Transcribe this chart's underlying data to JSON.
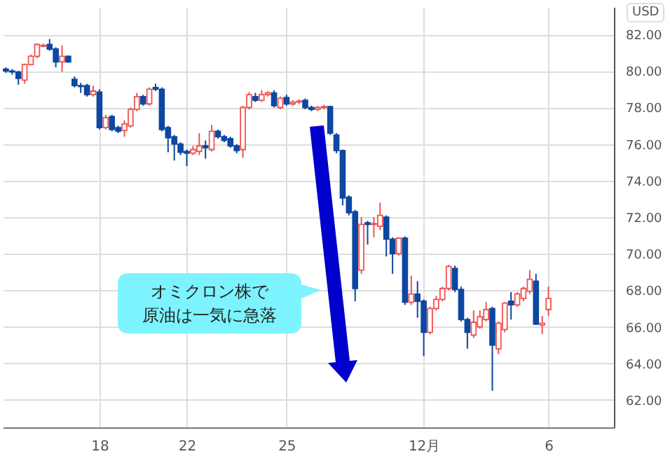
{
  "chart_data": {
    "type": "candlestick",
    "ylabel": "USD",
    "annotations": [
      "オミクロン株で",
      "原油は一気に急落"
    ],
    "categories": [
      null,
      null,
      null,
      null,
      null,
      null,
      null,
      null,
      null,
      null,
      null,
      null,
      null,
      null,
      null,
      "18",
      null,
      null,
      null,
      null,
      null,
      null,
      null,
      null,
      null,
      null,
      null,
      null,
      null,
      "22",
      null,
      null,
      null,
      null,
      null,
      null,
      null,
      null,
      null,
      null,
      null,
      null,
      null,
      null,
      null,
      "25",
      null,
      null,
      null,
      null,
      null,
      null,
      null,
      null,
      null,
      null,
      null,
      null,
      null,
      null,
      null,
      null,
      null,
      null,
      null,
      null,
      null,
      "12月",
      null,
      null,
      null,
      null,
      null,
      null,
      null,
      null,
      null,
      null,
      null,
      null,
      null,
      null,
      null,
      null,
      null,
      null,
      null,
      "6",
      null,
      null,
      null,
      null,
      null,
      null,
      null,
      null,
      null,
      null
    ],
    "ohlc": [
      [
        80.1,
        80.2,
        79.9,
        80.0
      ],
      [
        80.0,
        80.1,
        79.8,
        79.95
      ],
      [
        79.95,
        80.0,
        79.25,
        79.6
      ],
      [
        79.5,
        80.4,
        79.3,
        80.35
      ],
      [
        80.35,
        80.9,
        80.3,
        80.8
      ],
      [
        80.8,
        81.5,
        80.7,
        81.45
      ],
      [
        81.35,
        81.5,
        81.3,
        81.4
      ],
      [
        81.45,
        81.75,
        81.1,
        81.2
      ],
      [
        81.2,
        81.3,
        80.2,
        80.5
      ],
      [
        80.5,
        81.4,
        79.95,
        80.8
      ],
      [
        80.8,
        80.85,
        80.45,
        80.5
      ],
      [
        79.55,
        79.7,
        79.1,
        79.2
      ],
      [
        79.2,
        79.35,
        78.8,
        79.15
      ],
      [
        79.2,
        79.3,
        78.6,
        78.7
      ],
      [
        78.7,
        79.2,
        78.6,
        78.9
      ],
      [
        78.85,
        79.0,
        76.8,
        76.9
      ],
      [
        76.9,
        77.6,
        76.8,
        77.45
      ],
      [
        77.5,
        77.6,
        76.7,
        76.8
      ],
      [
        76.9,
        77.0,
        76.6,
        76.7
      ],
      [
        76.75,
        77.3,
        76.4,
        77.1
      ],
      [
        77.0,
        78.0,
        76.9,
        77.9
      ],
      [
        77.9,
        78.8,
        77.8,
        78.6
      ],
      [
        78.6,
        78.7,
        78.1,
        78.2
      ],
      [
        78.2,
        79.1,
        78.1,
        79.0
      ],
      [
        79.1,
        79.3,
        78.9,
        79.0
      ],
      [
        79.0,
        79.1,
        76.7,
        76.8
      ],
      [
        76.9,
        77.0,
        75.55,
        76.35
      ],
      [
        76.4,
        76.5,
        75.1,
        76.0
      ],
      [
        76.0,
        76.1,
        75.4,
        75.55
      ],
      [
        75.6,
        75.7,
        74.8,
        75.5
      ],
      [
        75.5,
        75.9,
        75.4,
        75.7
      ],
      [
        75.6,
        76.6,
        75.4,
        75.9
      ],
      [
        75.9,
        76.2,
        75.2,
        75.8
      ],
      [
        75.7,
        77.05,
        75.6,
        76.7
      ],
      [
        76.7,
        76.8,
        76.3,
        76.4
      ],
      [
        76.4,
        76.5,
        76.1,
        76.2
      ],
      [
        76.3,
        76.4,
        75.8,
        75.9
      ],
      [
        75.9,
        76.0,
        75.5,
        75.65
      ],
      [
        75.7,
        78.1,
        75.25,
        78.0
      ],
      [
        78.0,
        78.85,
        77.9,
        78.7
      ],
      [
        78.6,
        78.8,
        78.3,
        78.4
      ],
      [
        78.4,
        78.95,
        78.3,
        78.7
      ],
      [
        78.7,
        78.9,
        78.6,
        78.8
      ],
      [
        78.8,
        78.95,
        78.0,
        78.1
      ],
      [
        78.0,
        78.6,
        77.9,
        78.5
      ],
      [
        78.55,
        78.7,
        78.1,
        78.2
      ],
      [
        78.2,
        78.4,
        78.1,
        78.3
      ],
      [
        78.3,
        78.45,
        78.2,
        78.35
      ],
      [
        78.4,
        78.5,
        77.9,
        78.0
      ],
      [
        78.0,
        78.1,
        77.8,
        77.9
      ],
      [
        77.9,
        78.1,
        77.8,
        78.0
      ],
      [
        78.0,
        78.15,
        77.9,
        78.05
      ],
      [
        78.05,
        78.1,
        76.5,
        76.6
      ],
      [
        76.5,
        76.6,
        75.5,
        75.65
      ],
      [
        75.65,
        75.7,
        72.65,
        73.05
      ],
      [
        73.1,
        73.2,
        72.1,
        72.25
      ],
      [
        72.3,
        72.4,
        67.4,
        68.1
      ],
      [
        69.1,
        72.0,
        68.9,
        71.6
      ],
      [
        71.7,
        71.8,
        70.5,
        71.6
      ],
      [
        71.6,
        72.0,
        70.9,
        71.65
      ],
      [
        71.5,
        72.8,
        71.3,
        72.1
      ],
      [
        72.0,
        72.1,
        69.85,
        70.8
      ],
      [
        70.8,
        70.9,
        68.9,
        70.0
      ],
      [
        70.0,
        70.9,
        69.9,
        70.85
      ],
      [
        70.85,
        70.95,
        67.2,
        67.35
      ],
      [
        67.35,
        68.8,
        67.2,
        67.8
      ],
      [
        67.8,
        68.5,
        66.5,
        67.4
      ],
      [
        67.4,
        67.5,
        64.4,
        65.7
      ],
      [
        65.7,
        67.1,
        65.6,
        67.0
      ],
      [
        67.0,
        67.7,
        66.9,
        67.5
      ],
      [
        67.5,
        68.2,
        67.4,
        68.1
      ],
      [
        68.1,
        69.4,
        68.0,
        69.3
      ],
      [
        69.2,
        69.35,
        67.9,
        68.05
      ],
      [
        68.05,
        68.2,
        66.3,
        66.4
      ],
      [
        66.4,
        66.5,
        64.8,
        65.7
      ],
      [
        65.55,
        66.9,
        65.4,
        66.25
      ],
      [
        66.0,
        66.9,
        65.9,
        66.55
      ],
      [
        66.4,
        67.35,
        66.3,
        66.95
      ],
      [
        67.0,
        67.1,
        62.5,
        65.0
      ],
      [
        64.8,
        66.3,
        64.5,
        66.2
      ],
      [
        65.85,
        67.35,
        65.7,
        67.3
      ],
      [
        67.4,
        67.9,
        66.4,
        67.2
      ],
      [
        67.2,
        67.9,
        67.1,
        67.8
      ],
      [
        67.55,
        68.2,
        67.4,
        68.1
      ],
      [
        67.95,
        69.1,
        67.8,
        68.6
      ],
      [
        68.5,
        68.9,
        66.1,
        66.15
      ],
      [
        66.1,
        66.6,
        65.6,
        66.2
      ],
      [
        66.95,
        68.2,
        66.6,
        67.55
      ],
      null,
      null,
      null,
      null,
      null,
      null,
      null,
      null,
      null,
      null
    ],
    "ylim": [
      60.5,
      83.5
    ],
    "yticks": [
      {
        "value": 62,
        "label": "62.00"
      },
      {
        "value": 64,
        "label": "64.00"
      },
      {
        "value": 66,
        "label": "66.00"
      },
      {
        "value": 68,
        "label": "68.00"
      },
      {
        "value": 70,
        "label": "70.00"
      },
      {
        "value": 72,
        "label": "72.00"
      },
      {
        "value": 74,
        "label": "74.00"
      },
      {
        "value": 76,
        "label": "76.00"
      },
      {
        "value": 78,
        "label": "78.00"
      },
      {
        "value": 80,
        "label": "80.00"
      },
      {
        "value": 82,
        "label": "82.00"
      }
    ],
    "grid": true
  }
}
